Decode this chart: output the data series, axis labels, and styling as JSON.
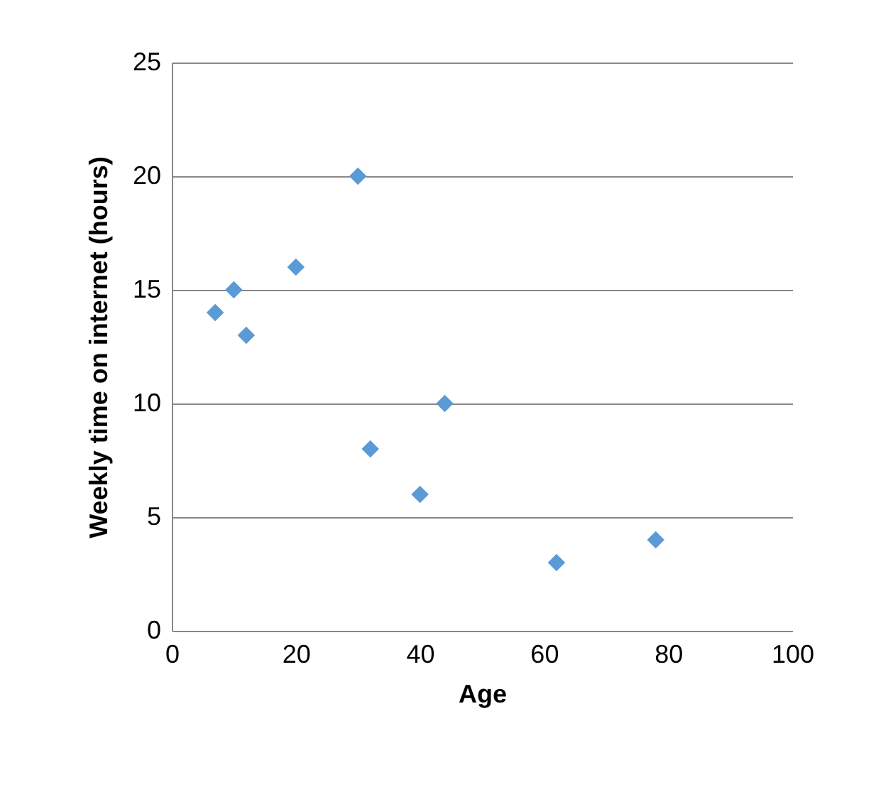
{
  "chart_data": {
    "type": "scatter",
    "xlabel": "Age",
    "ylabel": "Weekly time on internet (hours)",
    "x": [
      7,
      10,
      12,
      20,
      30,
      32,
      40,
      44,
      62,
      78
    ],
    "series": [
      {
        "color": "#5b9bd5",
        "values": [
          14,
          15,
          13,
          16,
          20,
          8,
          6,
          10,
          3,
          4
        ]
      }
    ],
    "xlim": [
      0,
      100
    ],
    "xticks": [
      0,
      20,
      40,
      60,
      80,
      100
    ],
    "ylim": [
      0,
      25
    ],
    "yticks": [
      0,
      5,
      10,
      15,
      20,
      25
    ],
    "grid": "y",
    "marker": "diamond"
  }
}
